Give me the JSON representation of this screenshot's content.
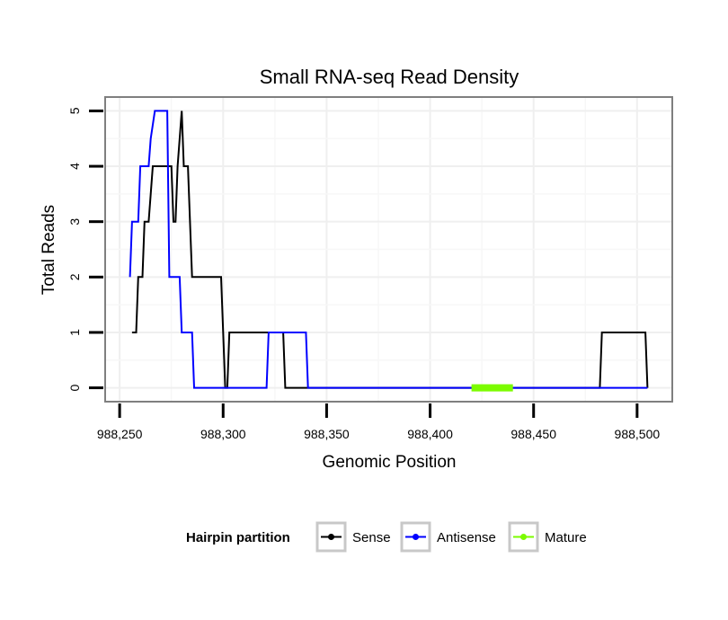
{
  "chart_data": {
    "type": "line",
    "title": "Small RNA-seq Read Density",
    "xlabel": "Genomic Position",
    "ylabel": "Total Reads",
    "xlim": [
      988243,
      988517
    ],
    "ylim": [
      -0.25,
      5.25
    ],
    "x_ticks": [
      988250,
      988300,
      988350,
      988400,
      988450,
      988500
    ],
    "x_tick_labels": [
      "988,250",
      "988,300",
      "988,350",
      "988,400",
      "988,450",
      "988,500"
    ],
    "y_ticks": [
      0,
      1,
      2,
      3,
      4,
      5
    ],
    "y_tick_labels": [
      "0",
      "1",
      "2",
      "3",
      "4",
      "5"
    ],
    "grid": true,
    "legend": {
      "title": "Hairpin partition",
      "position": "bottom",
      "entries": [
        "Sense",
        "Antisense",
        "Mature"
      ]
    },
    "series": [
      {
        "name": "Sense",
        "color": "#000000",
        "x": [
          988256,
          988258,
          988259,
          988261,
          988262,
          988264,
          988265,
          988266,
          988267,
          988268,
          988275,
          988276,
          988277,
          988278,
          988280,
          988281,
          988283,
          988284,
          988285,
          988286,
          988299,
          988300,
          988301,
          988302,
          988303,
          988304,
          988328,
          988329,
          988330,
          988482,
          988483,
          988484,
          988504,
          988505
        ],
        "y": [
          1,
          1,
          2,
          2,
          3,
          3,
          3.5,
          4,
          4,
          4,
          4,
          3,
          3,
          4,
          5,
          4,
          4,
          3,
          2,
          2,
          2,
          1,
          0,
          0,
          1,
          1,
          1,
          1,
          0,
          0,
          1,
          1,
          1,
          0
        ]
      },
      {
        "name": "Antisense",
        "color": "#0000ff",
        "x": [
          988255,
          988256,
          988259,
          988260,
          988264,
          988265,
          988267,
          988268,
          988273,
          988274,
          988279,
          988280,
          988282,
          988283,
          988285,
          988286,
          988321,
          988322,
          988340,
          988341,
          988505
        ],
        "y": [
          2,
          3,
          3,
          4,
          4,
          4.5,
          5,
          5,
          5,
          2,
          2,
          1,
          1,
          1,
          1,
          0,
          0,
          1,
          1,
          0,
          0
        ]
      },
      {
        "name": "Mature",
        "color": "#7cfc00",
        "x": [
          988420,
          988440
        ],
        "y": [
          0,
          0
        ]
      }
    ]
  }
}
